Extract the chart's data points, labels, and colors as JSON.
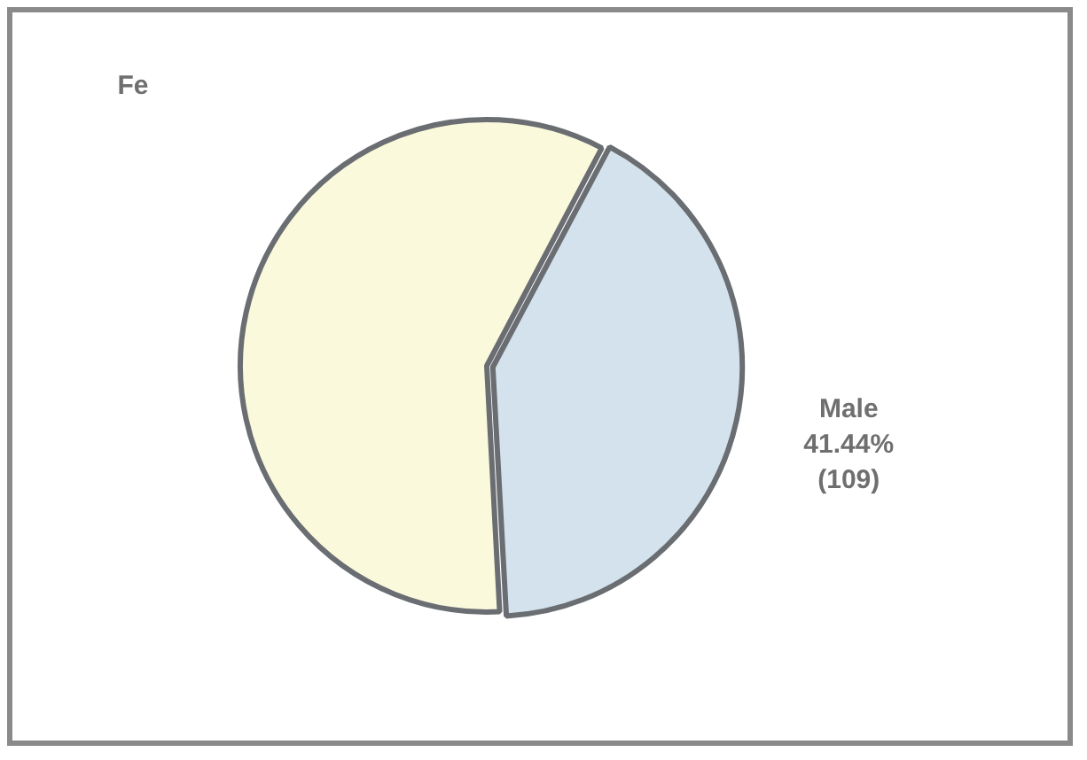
{
  "chart_data": {
    "type": "pie",
    "categories": [
      "Fe",
      "Male"
    ],
    "values": [
      58.56,
      41.44
    ],
    "colors": [
      "#fbf9dc",
      "#d3e2ec"
    ],
    "value_labels": [
      null,
      "41.44%\n(109)"
    ],
    "legend": false
  }
}
